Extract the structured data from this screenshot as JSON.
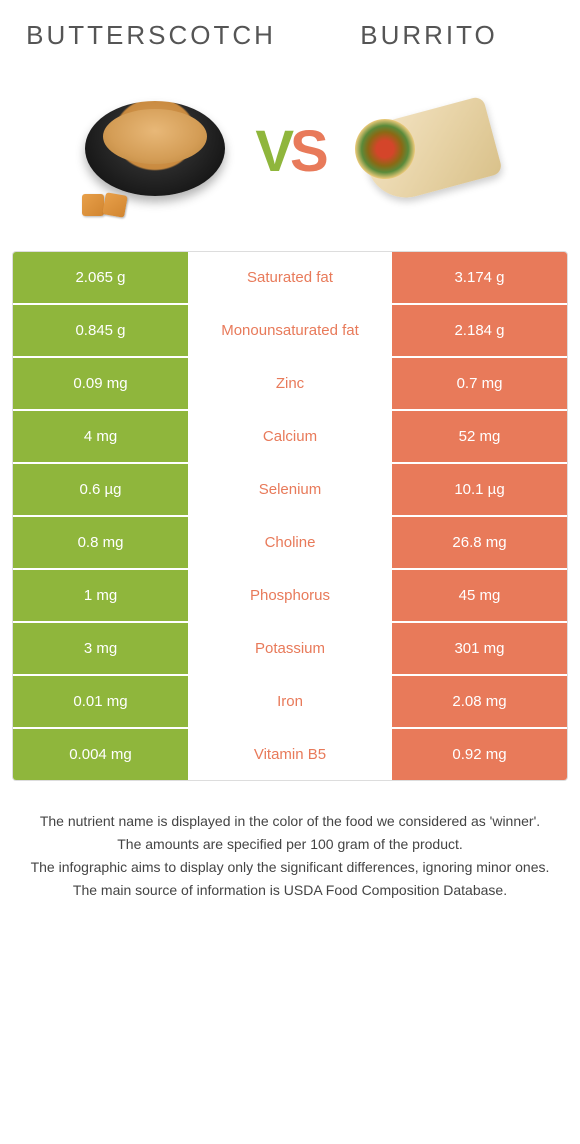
{
  "colors": {
    "left": "#8fb63c",
    "right": "#e87a5a",
    "vs_v": "#8fb63c",
    "vs_s": "#e87a5a",
    "background": "#ffffff"
  },
  "header": {
    "left_title": "BUTTERSCOTCH",
    "right_title": "BURRITO",
    "vs_v": "V",
    "vs_s": "S"
  },
  "rows": [
    {
      "left": "2.065 g",
      "label": "Saturated fat",
      "right": "3.174 g",
      "winner": "right"
    },
    {
      "left": "0.845 g",
      "label": "Monounsaturated fat",
      "right": "2.184 g",
      "winner": "right"
    },
    {
      "left": "0.09 mg",
      "label": "Zinc",
      "right": "0.7 mg",
      "winner": "right"
    },
    {
      "left": "4 mg",
      "label": "Calcium",
      "right": "52 mg",
      "winner": "right"
    },
    {
      "left": "0.6 µg",
      "label": "Selenium",
      "right": "10.1 µg",
      "winner": "right"
    },
    {
      "left": "0.8 mg",
      "label": "Choline",
      "right": "26.8 mg",
      "winner": "right"
    },
    {
      "left": "1 mg",
      "label": "Phosphorus",
      "right": "45 mg",
      "winner": "right"
    },
    {
      "left": "3 mg",
      "label": "Potassium",
      "right": "301 mg",
      "winner": "right"
    },
    {
      "left": "0.01 mg",
      "label": "Iron",
      "right": "2.08 mg",
      "winner": "right"
    },
    {
      "left": "0.004 mg",
      "label": "Vitamin B5",
      "right": "0.92 mg",
      "winner": "right"
    }
  ],
  "notes": [
    "The nutrient name is displayed in the color of the food we considered as 'winner'.",
    "The amounts are specified per 100 gram of the product.",
    "The infographic aims to display only the significant differences, ignoring minor ones.",
    "The main source of information is USDA Food Composition Database."
  ]
}
